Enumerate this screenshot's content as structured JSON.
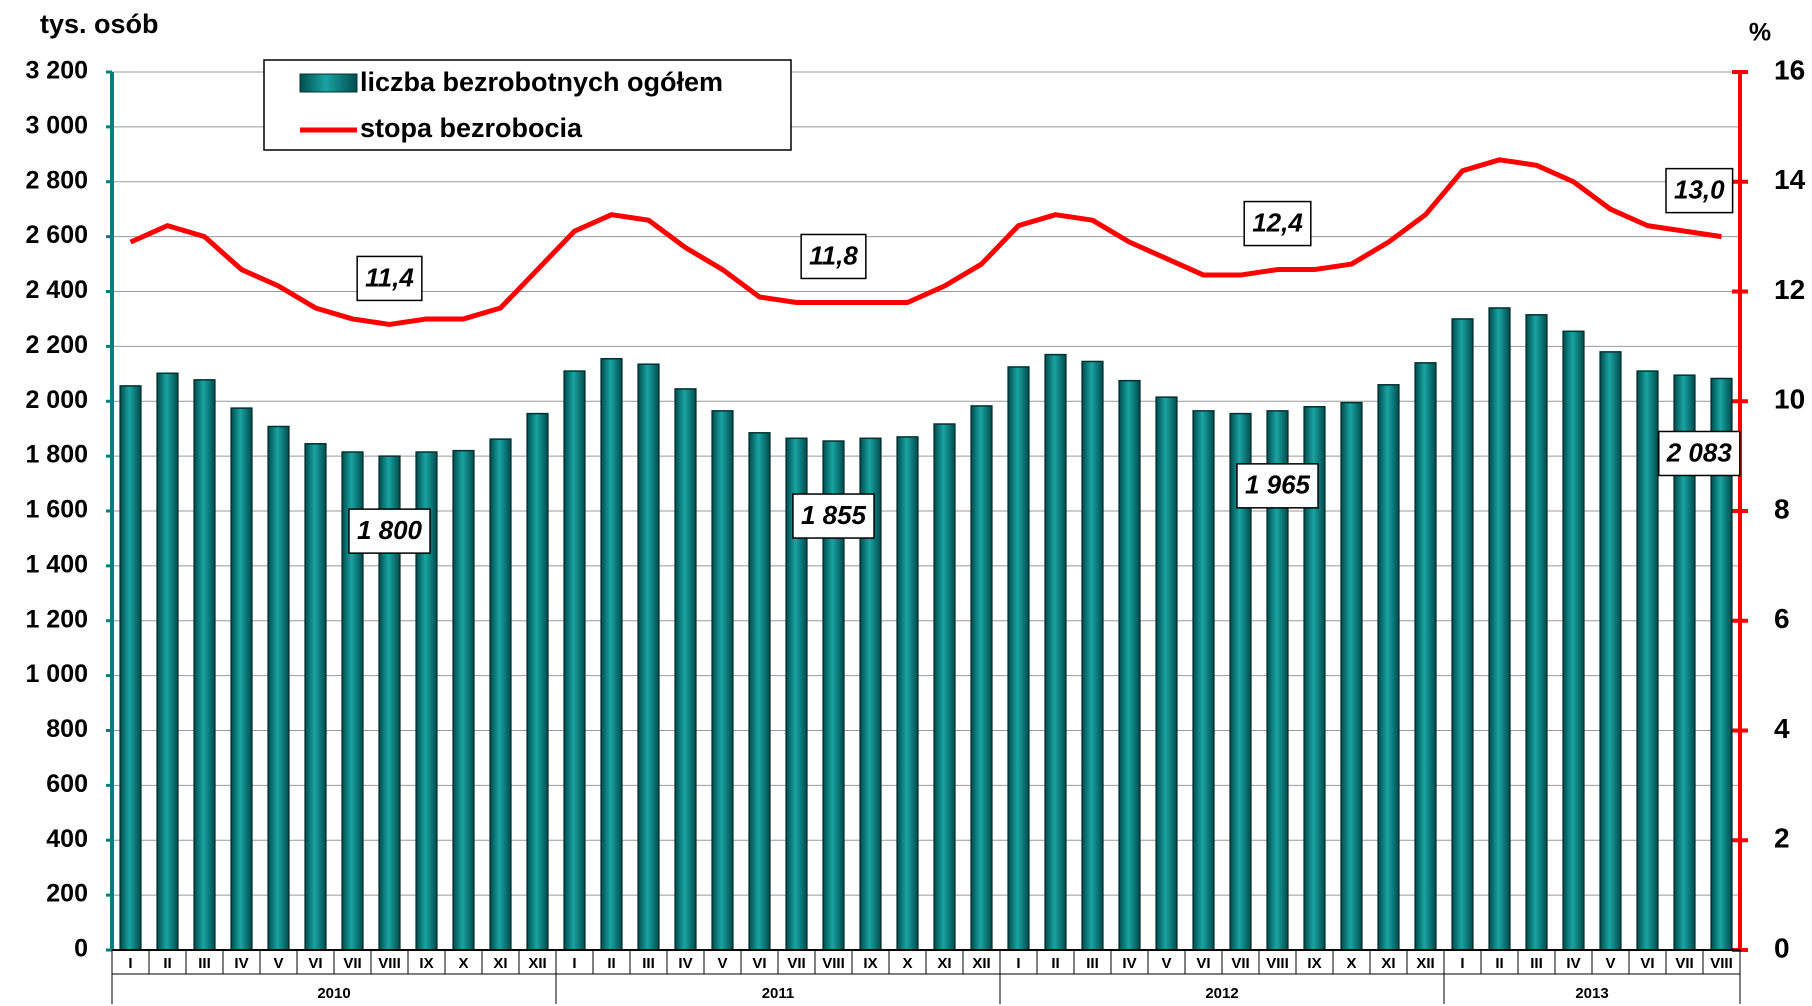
{
  "chart_data": {
    "type": "bar_line",
    "y_label": "tys. osób",
    "y2_label": "%",
    "categories": [
      "I",
      "II",
      "III",
      "IV",
      "V",
      "VI",
      "VII",
      "VIII",
      "IX",
      "X",
      "XI",
      "XII",
      "I",
      "II",
      "III",
      "IV",
      "V",
      "VI",
      "VII",
      "VIII",
      "IX",
      "X",
      "XI",
      "XII",
      "I",
      "II",
      "III",
      "IV",
      "V",
      "VI",
      "VII",
      "VIII",
      "IX",
      "X",
      "XI",
      "XII",
      "I",
      "II",
      "III",
      "IV",
      "V",
      "VI",
      "VII",
      "VIII"
    ],
    "years": [
      "2010",
      "2011",
      "2012",
      "2013"
    ],
    "series": [
      {
        "name": "liczba bezrobotnych ogółem",
        "color": "#007f7f",
        "type": "bar",
        "values": [
          2056,
          2102,
          2078,
          1975,
          1908,
          1845,
          1815,
          1800,
          1815,
          1820,
          1862,
          1955,
          2110,
          2155,
          2135,
          2045,
          1965,
          1885,
          1865,
          1855,
          1865,
          1870,
          1917,
          1983,
          2125,
          2170,
          2145,
          2075,
          2015,
          1965,
          1955,
          1965,
          1980,
          1995,
          2060,
          2140,
          2300,
          2340,
          2315,
          2255,
          2180,
          2110,
          2095,
          2083
        ],
        "value_labels": [
          null,
          null,
          null,
          null,
          null,
          null,
          null,
          "1 800",
          null,
          null,
          null,
          null,
          null,
          null,
          null,
          null,
          null,
          null,
          null,
          "1 855",
          null,
          null,
          null,
          null,
          null,
          null,
          null,
          null,
          null,
          null,
          null,
          "1 965",
          null,
          null,
          null,
          null,
          null,
          null,
          null,
          null,
          null,
          null,
          null,
          "2 083"
        ]
      },
      {
        "name": "stopa bezrobocia",
        "color": "#ff0000",
        "type": "line",
        "axis": "y2",
        "values": [
          12.9,
          13.2,
          13.0,
          12.4,
          12.1,
          11.7,
          11.5,
          11.4,
          11.5,
          11.5,
          11.7,
          12.4,
          13.1,
          13.4,
          13.3,
          12.8,
          12.4,
          11.9,
          11.8,
          11.8,
          11.8,
          11.8,
          12.1,
          12.5,
          13.2,
          13.4,
          13.3,
          12.9,
          12.6,
          12.3,
          12.3,
          12.4,
          12.4,
          12.5,
          12.9,
          13.4,
          14.2,
          14.4,
          14.3,
          14.0,
          13.5,
          13.2,
          13.1,
          13.0
        ],
        "value_labels": [
          null,
          null,
          null,
          null,
          null,
          null,
          null,
          "11,4",
          null,
          null,
          null,
          null,
          null,
          null,
          null,
          null,
          null,
          null,
          null,
          "11,8",
          null,
          null,
          null,
          null,
          null,
          null,
          null,
          null,
          null,
          null,
          null,
          "12,4",
          null,
          null,
          null,
          null,
          null,
          null,
          null,
          null,
          null,
          null,
          null,
          "13,0"
        ]
      }
    ],
    "ylim": [
      0,
      3200
    ],
    "yticks": [
      0,
      200,
      400,
      600,
      800,
      {
        "value": 1000,
        "label": "1 000"
      },
      {
        "value": 1200,
        "label": "1 200"
      },
      {
        "value": 1400,
        "label": "1 400"
      },
      {
        "value": 1600,
        "label": "1 600"
      },
      {
        "value": 1800,
        "label": "1 800"
      },
      {
        "value": 2000,
        "label": "2 000"
      },
      {
        "value": 2200,
        "label": "2 200"
      },
      {
        "value": 2400,
        "label": "2 400"
      },
      {
        "value": 2600,
        "label": "2 600"
      },
      {
        "value": 2800,
        "label": "2 800"
      },
      {
        "value": 3000,
        "label": "3 000"
      },
      {
        "value": 3200,
        "label": "3 200"
      }
    ],
    "y2lim": [
      0,
      16
    ],
    "y2ticks": [
      0,
      2,
      4,
      6,
      8,
      10,
      12,
      14,
      16
    ],
    "grid": true,
    "legend": "top-left"
  }
}
